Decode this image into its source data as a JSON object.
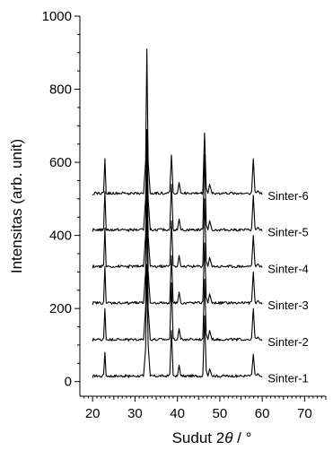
{
  "chart_data": {
    "type": "line",
    "title": "",
    "xlabel_prefix": "Sudut 2",
    "xlabel_symbol": "θ",
    "xlabel_suffix": " / °",
    "ylabel": "Intensitas (arb. unit)",
    "xlim": [
      17,
      75
    ],
    "ylim": [
      -40,
      1000
    ],
    "x_ticks": [
      20,
      30,
      40,
      50,
      60,
      70
    ],
    "y_ticks": [
      0,
      200,
      400,
      600,
      800,
      1000
    ],
    "grid": false,
    "legend": "none",
    "series_labels_position": "right-of-traces",
    "series": [
      {
        "name": "Sinter-1",
        "baseline": 10,
        "x": [
          20.0,
          22.0,
          22.6,
          22.9,
          23.2,
          24.5,
          26.5,
          28.5,
          30.5,
          32.0,
          32.5,
          32.8,
          33.1,
          33.6,
          35.0,
          37.0,
          38.2,
          38.6,
          39.0,
          40.0,
          40.4,
          40.8,
          42.0,
          44.0,
          46.0,
          46.4,
          46.8,
          47.2,
          47.6,
          48.2,
          50.0,
          52.0,
          54.0,
          55.5,
          56.5,
          57.5,
          57.9,
          58.3,
          58.7,
          59.0,
          59.5,
          60.0
        ],
        "y": [
          10,
          12,
          20,
          80,
          15,
          12,
          14,
          11,
          13,
          14,
          90,
          320,
          100,
          15,
          12,
          14,
          20,
          140,
          18,
          15,
          45,
          16,
          12,
          14,
          20,
          180,
          30,
          15,
          35,
          14,
          12,
          13,
          12,
          14,
          16,
          20,
          75,
          20,
          18,
          22,
          14,
          12
        ]
      },
      {
        "name": "Sinter-2",
        "baseline": 110,
        "x": [
          20.0,
          22.0,
          22.6,
          22.9,
          23.2,
          24.5,
          26.5,
          28.5,
          30.5,
          32.0,
          32.5,
          32.8,
          33.1,
          33.6,
          35.0,
          37.0,
          38.2,
          38.6,
          39.0,
          40.0,
          40.4,
          40.8,
          42.0,
          44.0,
          46.0,
          46.4,
          46.8,
          47.2,
          47.6,
          48.2,
          50.0,
          52.0,
          54.0,
          55.5,
          56.5,
          57.5,
          57.9,
          58.3,
          58.7,
          59.0,
          59.5,
          60.0
        ],
        "y": [
          110,
          112,
          120,
          200,
          115,
          112,
          114,
          111,
          113,
          114,
          200,
          500,
          200,
          115,
          112,
          114,
          120,
          270,
          118,
          115,
          145,
          116,
          112,
          114,
          120,
          280,
          130,
          115,
          140,
          114,
          112,
          113,
          112,
          114,
          116,
          120,
          200,
          120,
          118,
          122,
          114,
          112
        ]
      },
      {
        "name": "Sinter-3",
        "baseline": 210,
        "x": [
          20.0,
          22.0,
          22.6,
          22.9,
          23.2,
          24.5,
          26.5,
          28.5,
          30.5,
          32.0,
          32.5,
          32.8,
          33.1,
          33.6,
          35.0,
          37.0,
          38.2,
          38.6,
          39.0,
          40.0,
          40.4,
          40.8,
          42.0,
          44.0,
          46.0,
          46.4,
          46.8,
          47.2,
          47.6,
          48.2,
          50.0,
          52.0,
          54.0,
          55.5,
          56.5,
          57.5,
          57.9,
          58.3,
          58.7,
          59.0,
          59.5,
          60.0
        ],
        "y": [
          210,
          212,
          220,
          315,
          215,
          212,
          214,
          211,
          213,
          214,
          300,
          580,
          300,
          215,
          212,
          214,
          220,
          345,
          218,
          215,
          245,
          216,
          212,
          214,
          220,
          380,
          230,
          215,
          240,
          214,
          212,
          213,
          212,
          214,
          216,
          220,
          300,
          220,
          218,
          222,
          214,
          212
        ]
      },
      {
        "name": "Sinter-4",
        "baseline": 310,
        "x": [
          20.0,
          22.0,
          22.6,
          22.9,
          23.2,
          24.5,
          26.5,
          28.5,
          30.5,
          32.0,
          32.5,
          32.8,
          33.1,
          33.6,
          35.0,
          37.0,
          38.2,
          38.6,
          39.0,
          40.0,
          40.4,
          40.8,
          42.0,
          44.0,
          46.0,
          46.4,
          46.8,
          47.2,
          47.6,
          48.2,
          50.0,
          52.0,
          54.0,
          55.5,
          56.5,
          57.5,
          57.9,
          58.3,
          58.7,
          59.0,
          59.5,
          60.0
        ],
        "y": [
          310,
          312,
          320,
          420,
          315,
          312,
          314,
          311,
          313,
          314,
          400,
          660,
          400,
          315,
          312,
          314,
          320,
          440,
          318,
          315,
          345,
          316,
          312,
          314,
          320,
          500,
          330,
          315,
          340,
          314,
          312,
          313,
          312,
          314,
          316,
          320,
          400,
          320,
          318,
          322,
          314,
          312
        ]
      },
      {
        "name": "Sinter-5",
        "baseline": 410,
        "x": [
          20.0,
          22.0,
          22.6,
          22.9,
          23.2,
          24.5,
          26.5,
          28.5,
          30.5,
          32.0,
          32.5,
          32.8,
          33.1,
          33.6,
          35.0,
          37.0,
          38.2,
          38.6,
          39.0,
          40.0,
          40.4,
          40.8,
          42.0,
          44.0,
          46.0,
          46.4,
          46.8,
          47.2,
          47.6,
          48.2,
          50.0,
          52.0,
          54.0,
          55.5,
          56.5,
          57.5,
          57.9,
          58.3,
          58.7,
          59.0,
          59.5,
          60.0
        ],
        "y": [
          410,
          412,
          420,
          520,
          415,
          412,
          414,
          411,
          413,
          414,
          500,
          690,
          500,
          415,
          412,
          414,
          420,
          540,
          418,
          415,
          445,
          416,
          412,
          414,
          420,
          620,
          430,
          415,
          440,
          414,
          412,
          413,
          412,
          414,
          416,
          420,
          510,
          420,
          418,
          422,
          414,
          412
        ]
      },
      {
        "name": "Sinter-6",
        "baseline": 510,
        "x": [
          20.0,
          22.0,
          22.6,
          22.9,
          23.2,
          24.5,
          26.5,
          28.5,
          30.5,
          32.0,
          32.5,
          32.8,
          33.1,
          33.6,
          35.0,
          37.0,
          38.2,
          38.6,
          39.0,
          40.0,
          40.4,
          40.8,
          42.0,
          44.0,
          46.0,
          46.4,
          46.8,
          47.2,
          47.6,
          48.2,
          50.0,
          52.0,
          54.0,
          55.5,
          56.5,
          57.5,
          57.9,
          58.3,
          58.7,
          59.0,
          59.5,
          60.0
        ],
        "y": [
          510,
          512,
          520,
          610,
          515,
          512,
          514,
          511,
          513,
          514,
          600,
          910,
          600,
          515,
          512,
          514,
          520,
          620,
          518,
          515,
          545,
          516,
          512,
          514,
          520,
          680,
          530,
          515,
          540,
          514,
          512,
          513,
          512,
          514,
          516,
          520,
          610,
          520,
          518,
          522,
          514,
          512
        ]
      }
    ]
  }
}
